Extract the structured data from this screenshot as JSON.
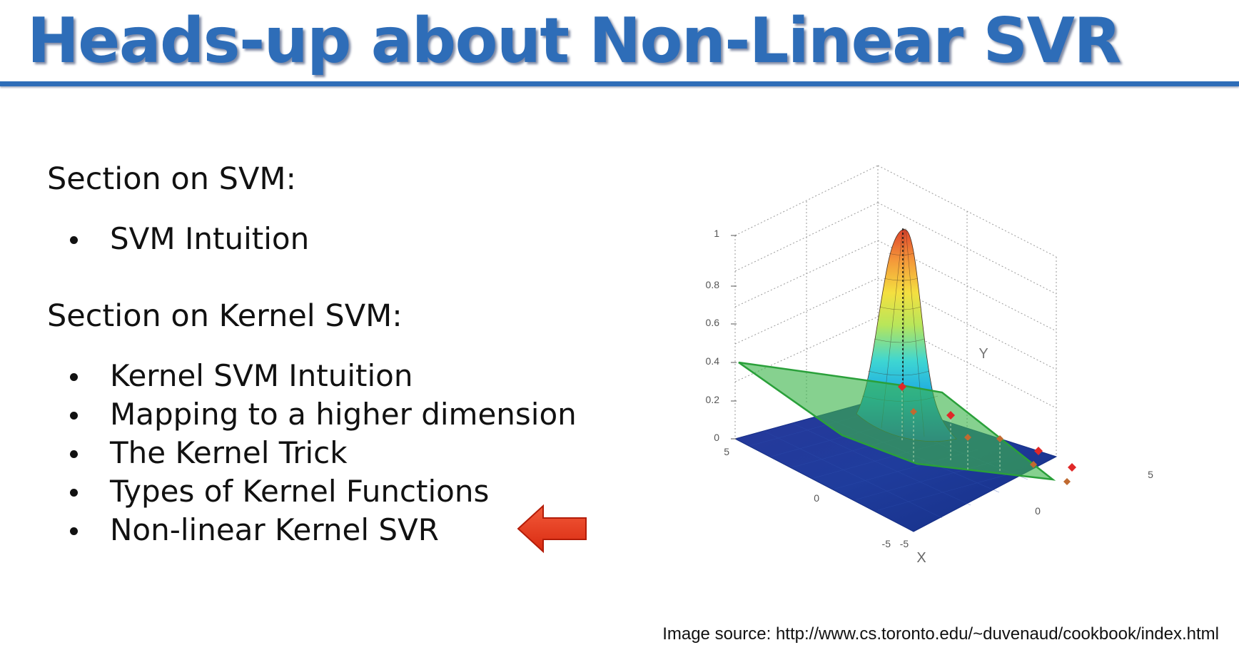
{
  "slide": {
    "title": "Heads-up about Non-Linear SVR",
    "sections": [
      {
        "heading": "Section on SVM:",
        "items": [
          "SVM Intuition"
        ]
      },
      {
        "heading": "Section on Kernel SVM:",
        "items": [
          "Kernel SVM Intuition",
          "Mapping to a higher dimension",
          "The Kernel Trick",
          "Types of Kernel Functions",
          "Non-linear Kernel SVR"
        ]
      }
    ],
    "highlighted_item": "Non-linear Kernel SVR",
    "pointer_icon": "left-arrow-icon",
    "image_source": "Image source: http://www.cs.toronto.edu/~duvenaud/cookbook/index.html"
  },
  "figure": {
    "z_ticks": [
      "0",
      "0.2",
      "0.4",
      "0.6",
      "0.8",
      "1"
    ],
    "x_ticks": [
      "-5",
      "0",
      "5"
    ],
    "y_ticks": [
      "5",
      "0",
      "-5"
    ],
    "x_axis_label": "X",
    "y_axis_label": "Y",
    "colors": {
      "title": "#2e6db8",
      "floor": "#1d3f9a",
      "plane": "#3cb54a",
      "arrow": "#e43a1c",
      "points": "#e02828"
    }
  }
}
